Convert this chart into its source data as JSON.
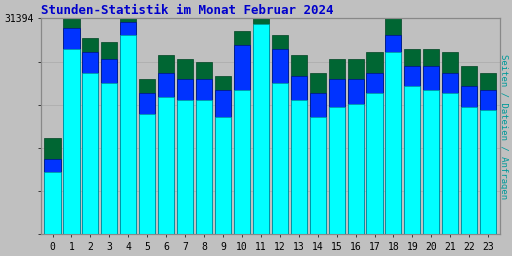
{
  "title": "Stunden-Statistik im Monat Februar 2024",
  "title_color": "#0000CC",
  "hours": [
    0,
    1,
    2,
    3,
    4,
    5,
    6,
    7,
    8,
    9,
    10,
    11,
    12,
    13,
    14,
    15,
    16,
    17,
    18,
    19,
    20,
    21,
    22,
    23
  ],
  "max_value": 31394,
  "ylabel_right": "Seiten / Dateien / Anfragen",
  "bg_color": "#C0C0C0",
  "plot_bg": "#C0C0C0",
  "seiten": [
    9000,
    27000,
    23500,
    22000,
    29000,
    17500,
    20000,
    19500,
    19500,
    17000,
    21000,
    30500,
    22000,
    19500,
    17000,
    18500,
    19000,
    20500,
    26500,
    21500,
    21000,
    20500,
    18500,
    18000
  ],
  "dateien": [
    11000,
    30000,
    26500,
    25500,
    30800,
    20500,
    23500,
    22500,
    22500,
    21000,
    27500,
    29000,
    27000,
    23000,
    20500,
    22500,
    22500,
    23500,
    29000,
    24500,
    24500,
    23500,
    21500,
    21000
  ],
  "anfragen": [
    14000,
    31394,
    28500,
    28000,
    31394,
    22500,
    26000,
    25500,
    25000,
    23000,
    29500,
    31394,
    29000,
    26000,
    23500,
    25500,
    25500,
    26500,
    31394,
    27000,
    27000,
    26500,
    24500,
    23500
  ],
  "color_seiten": "#00FFFF",
  "color_dateien": "#0033FF",
  "color_anfragen": "#006633",
  "bar_width": 0.85,
  "ylim": [
    0,
    31394
  ],
  "grid_color": "#AAAAAA",
  "grid_values": [
    0,
    6278,
    12556,
    18835,
    25113,
    31394
  ]
}
